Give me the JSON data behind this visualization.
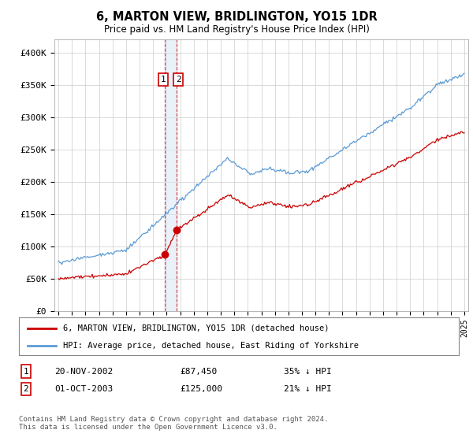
{
  "title": "6, MARTON VIEW, BRIDLINGTON, YO15 1DR",
  "subtitle": "Price paid vs. HM Land Registry's House Price Index (HPI)",
  "ylim": [
    0,
    420000
  ],
  "yticks": [
    0,
    50000,
    100000,
    150000,
    200000,
    250000,
    300000,
    350000,
    400000
  ],
  "hpi_color": "#5b9bd5",
  "price_color": "#cc0000",
  "purchase1": {
    "date_num": 2002.88,
    "price": 87450,
    "label": "1",
    "date_str": "20-NOV-2002",
    "hpi_diff": "35% ↓ HPI"
  },
  "purchase2": {
    "date_num": 2003.75,
    "price": 125000,
    "label": "2",
    "date_str": "01-OCT-2003",
    "hpi_diff": "21% ↓ HPI"
  },
  "legend_entry1": "6, MARTON VIEW, BRIDLINGTON, YO15 1DR (detached house)",
  "legend_entry2": "HPI: Average price, detached house, East Riding of Yorkshire",
  "footer": "Contains HM Land Registry data © Crown copyright and database right 2024.\nThis data is licensed under the Open Government Licence v3.0.",
  "background_color": "#ffffff",
  "grid_color": "#cccccc",
  "shade_color": "#dde8f5"
}
